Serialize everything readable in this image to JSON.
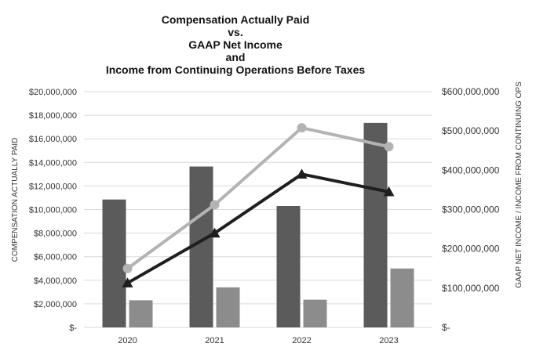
{
  "chart_data": {
    "type": "bar",
    "title_lines": [
      "Compensation Actually Paid",
      "vs.",
      "GAAP Net Income",
      "and",
      "Income from Continuing Operations Before Taxes"
    ],
    "categories": [
      "2020",
      "2021",
      "2022",
      "2023"
    ],
    "ylabel": "COMPENSATION ACTUALLY PAID",
    "y2label": "GAAP NET INCOME / INCOME FROM CONTINUING OPS",
    "ylim": [
      0,
      20000000
    ],
    "y2lim": [
      0,
      600000000
    ],
    "y_ticks": [
      "$-",
      "$2,000,000",
      "$4,000,000",
      "$6,000,000",
      "$8,000,000",
      "$10,000,000",
      "$12,000,000",
      "$14,000,000",
      "$16,000,000",
      "$18,000,000",
      "$20,000,000"
    ],
    "y2_ticks": [
      "$-",
      "$100,000,000",
      "$200,000,000",
      "$300,000,000",
      "$400,000,000",
      "$500,000,000",
      "$600,000,000"
    ],
    "grid": true,
    "bar_series": [
      {
        "values": [
          10850000,
          13650000,
          10300000,
          17350000
        ],
        "color": "#5b5b5b",
        "axis": "left"
      },
      {
        "values": [
          2300000,
          3400000,
          2350000,
          5000000
        ],
        "color": "#8c8c8c",
        "axis": "left"
      }
    ],
    "line_series": [
      {
        "values": [
          150000000,
          312000000,
          508000000,
          460000000
        ],
        "color": "#b3b3b3",
        "marker": "circle",
        "axis": "right"
      },
      {
        "values": [
          113000000,
          240000000,
          390000000,
          345000000
        ],
        "color": "#1f1f1f",
        "marker": "triangle",
        "axis": "right"
      }
    ]
  }
}
